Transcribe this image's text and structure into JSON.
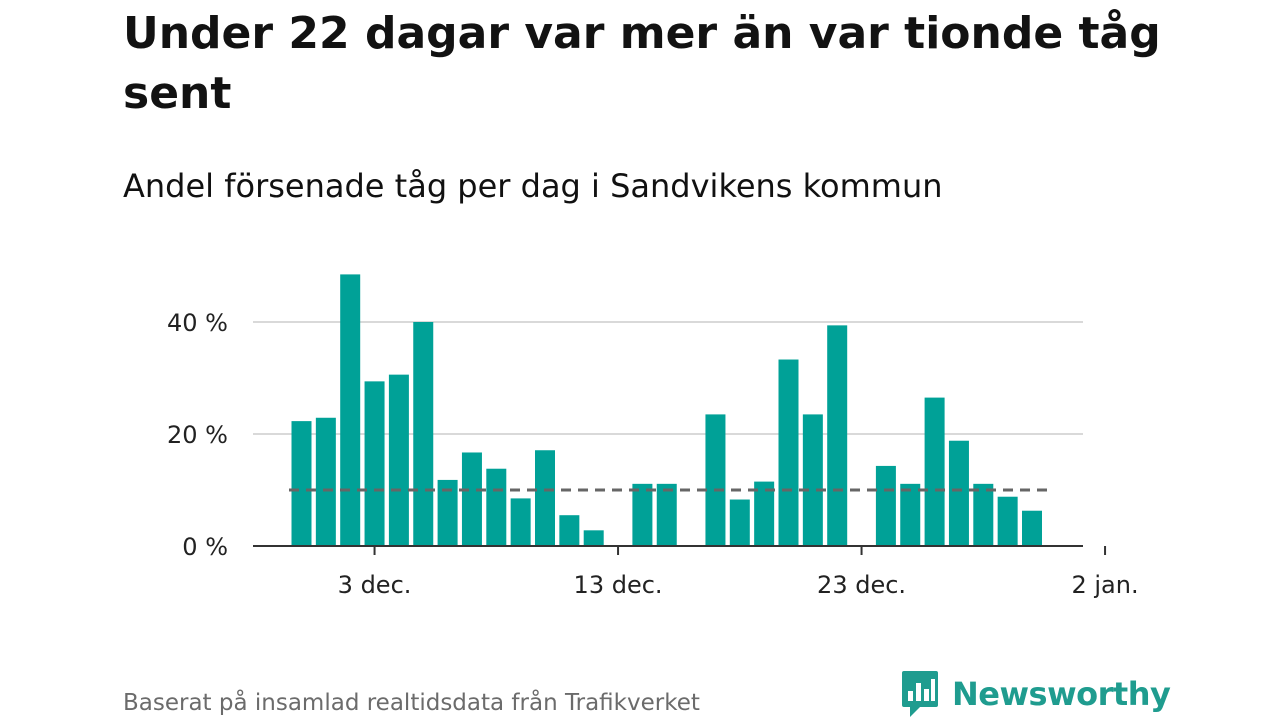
{
  "header": {
    "title": "Under 22 dagar var mer än var tionde tåg sent",
    "subtitle": "Andel försenade tåg per dag i Sandvikens kommun"
  },
  "footer": {
    "source": "Baserat på insamlad realtidsdata från Trafikverket",
    "brand": "Newsworthy"
  },
  "colors": {
    "bar": "#00a197",
    "reference_line": "#666666",
    "brand": "#1f9c8f"
  },
  "chart_data": {
    "type": "bar",
    "x_tick_labels": [
      "3 dec.",
      "13 dec.",
      "23 dec.",
      "2 jan."
    ],
    "y_tick_labels": [
      "0 %",
      "20 %",
      "40 %"
    ],
    "y_ticks": [
      0,
      20,
      40
    ],
    "ylim": [
      0,
      50
    ],
    "grid": true,
    "reference_line": 10,
    "series": [
      {
        "x": [
          "2021-11-30",
          "2021-12-01",
          "2021-12-02",
          "2021-12-03",
          "2021-12-04",
          "2021-12-05",
          "2021-12-06",
          "2021-12-07",
          "2021-12-08",
          "2021-12-09",
          "2021-12-10",
          "2021-12-11",
          "2021-12-12",
          "2021-12-13",
          "2021-12-14",
          "2021-12-15",
          "2021-12-16",
          "2021-12-17",
          "2021-12-18",
          "2021-12-19",
          "2021-12-20",
          "2021-12-21",
          "2021-12-22",
          "2021-12-23",
          "2021-12-24",
          "2021-12-25",
          "2021-12-26",
          "2021-12-27",
          "2021-12-28",
          "2021-12-29",
          "2021-12-30",
          "2021-12-31"
        ],
        "values": [
          22.3,
          22.9,
          48.5,
          29.4,
          30.6,
          40.0,
          11.8,
          16.7,
          13.8,
          8.5,
          17.1,
          5.5,
          2.8,
          null,
          11.1,
          11.1,
          null,
          23.5,
          8.3,
          11.5,
          33.3,
          23.5,
          39.4,
          null,
          14.3,
          11.1,
          26.5,
          18.8,
          11.1,
          8.8,
          6.3,
          null
        ]
      }
    ]
  }
}
